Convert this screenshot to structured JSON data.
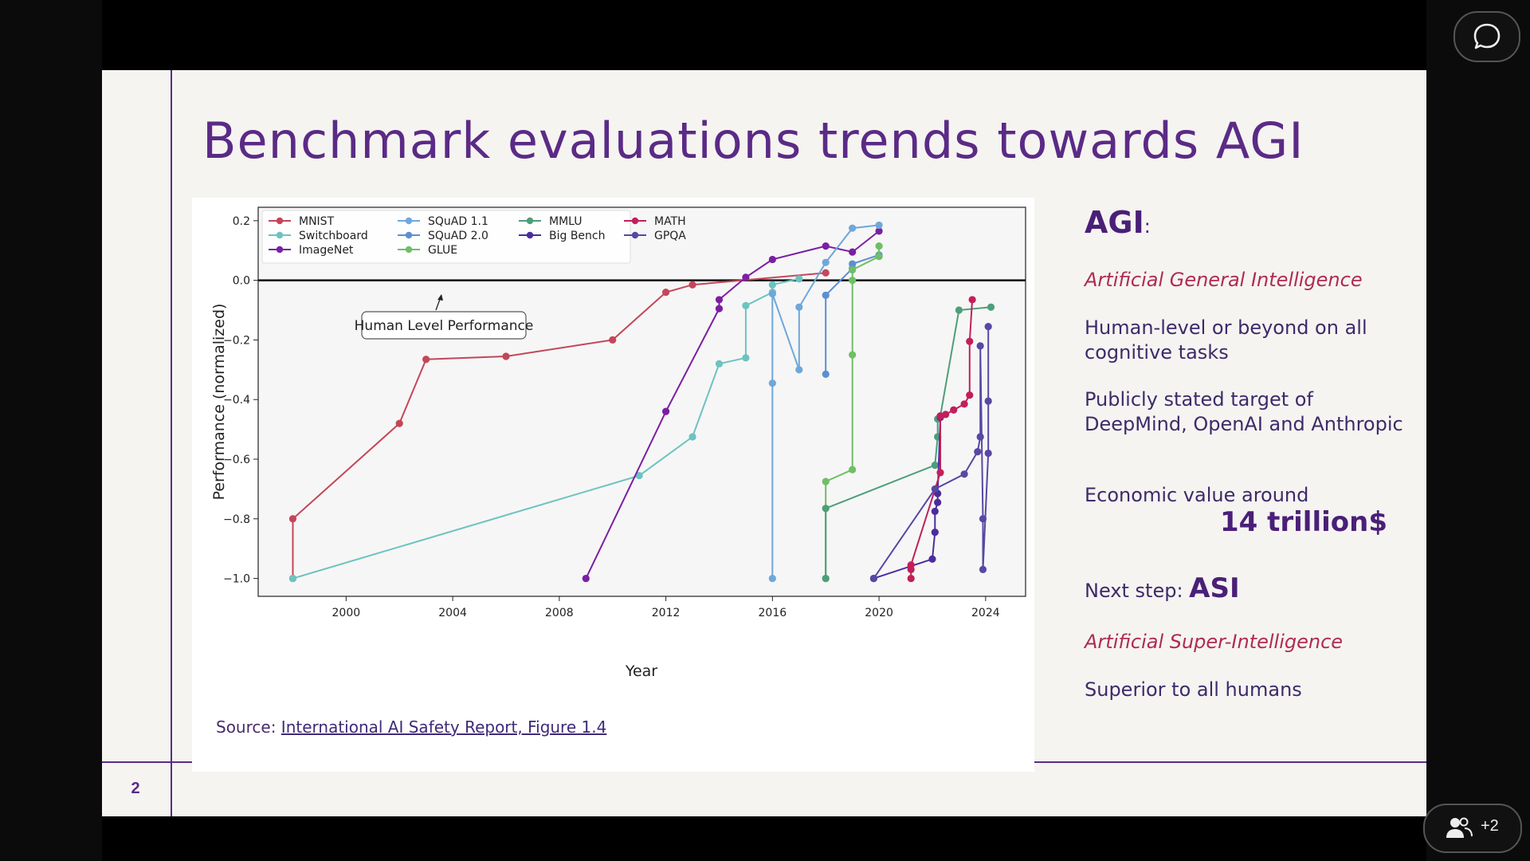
{
  "slide": {
    "title": "Benchmark evaluations trends towards AGI",
    "page_number": "2",
    "source_prefix": "Source: ",
    "source_link": "International AI Safety Report, Figure 1.4"
  },
  "right_panel": {
    "agi_heading": "AGI",
    "agi_colon": ":",
    "agi_full": "Artificial General Intelligence",
    "point1": "Human-level or beyond on all cognitive tasks",
    "point2": "Publicly stated target of DeepMind, OpenAI and Anthropic",
    "point3": "Economic value around",
    "point3_value": "14 trillion$",
    "next_step_label": "Next step: ",
    "next_step_value": "ASI",
    "asi_full": "Artificial Super-Intelligence",
    "point4": "Superior to all humans"
  },
  "overlay": {
    "participants_badge": "+2",
    "chat_icon": "chat-bubble-icon",
    "people_icon": "people-icon"
  },
  "chart_data": {
    "type": "line",
    "xlabel": "Year",
    "ylabel": "Performance (normalized)",
    "xlim": [
      1996.7,
      2025.5
    ],
    "ylim": [
      -1.06,
      0.245
    ],
    "xticks": [
      "2000",
      "2004",
      "2008",
      "2012",
      "2016",
      "2020",
      "2024"
    ],
    "yticks": [
      "0.2",
      "0.0",
      "−0.2",
      "−0.4",
      "−0.6",
      "−0.8",
      "−1.0"
    ],
    "reference_line": {
      "y": 0.0,
      "label": "Human Level Performance"
    },
    "legend_position": "top-left",
    "series": [
      {
        "name": "MNIST",
        "color": "#c44659",
        "x": [
          1998,
          1998,
          2002,
          2003,
          2006,
          2010,
          2012,
          2013,
          2018
        ],
        "y": [
          -1.0,
          -0.8,
          -0.48,
          -0.265,
          -0.255,
          -0.2,
          -0.04,
          -0.015,
          0.025
        ]
      },
      {
        "name": "Switchboard",
        "color": "#6cc3bf",
        "x": [
          1998,
          2011,
          2013,
          2014,
          2015,
          2015,
          2016,
          2016,
          2017
        ],
        "y": [
          -1.0,
          -0.655,
          -0.525,
          -0.28,
          -0.26,
          -0.085,
          -0.04,
          -0.015,
          0.005
        ]
      },
      {
        "name": "ImageNet",
        "color": "#7b1fa2",
        "x": [
          2009,
          2012,
          2014,
          2014,
          2015,
          2016,
          2018,
          2019,
          2020
        ],
        "y": [
          -1.0,
          -0.44,
          -0.095,
          -0.065,
          0.01,
          0.07,
          0.115,
          0.095,
          0.165
        ]
      },
      {
        "name": "SQuAD 1.1",
        "color": "#6fa7db",
        "x": [
          2016,
          2016,
          2016,
          2017,
          2017,
          2018,
          2019,
          2020
        ],
        "y": [
          -1.0,
          -0.345,
          -0.045,
          -0.3,
          -0.09,
          0.06,
          0.175,
          0.185
        ]
      },
      {
        "name": "SQuAD 2.0",
        "color": "#5b8fd1",
        "x": [
          2018,
          2018,
          2019,
          2019,
          2020
        ],
        "y": [
          -0.315,
          -0.05,
          0.04,
          0.055,
          0.085
        ]
      },
      {
        "name": "GLUE",
        "color": "#6fbf65",
        "x": [
          2018,
          2018,
          2019,
          2019,
          2019,
          2019,
          2020,
          2020
        ],
        "y": [
          -1.0,
          -0.675,
          -0.635,
          -0.25,
          0.0,
          0.035,
          0.08,
          0.115
        ]
      },
      {
        "name": "MMLU",
        "color": "#4e9e79",
        "x": [
          2018,
          2018,
          2022.1,
          2022.2,
          2022.2,
          2022.3,
          2023,
          2024.2
        ],
        "y": [
          -1.0,
          -0.765,
          -0.62,
          -0.525,
          -0.465,
          -0.455,
          -0.1,
          -0.09
        ]
      },
      {
        "name": "Big Bench",
        "color": "#4b2c9e",
        "x": [
          2019.8,
          2022,
          2022.1,
          2022.1,
          2022.2,
          2022.2,
          2022.3
        ],
        "y": [
          -1.0,
          -0.935,
          -0.845,
          -0.775,
          -0.745,
          -0.715,
          -0.46
        ]
      },
      {
        "name": "MATH",
        "color": "#c21f5b",
        "x": [
          2021.2,
          2021.2,
          2021.2,
          2022.3,
          2022.3,
          2022.5,
          2022.8,
          2023.2,
          2023.4,
          2023.4,
          2023.5
        ],
        "y": [
          -1.0,
          -0.97,
          -0.955,
          -0.645,
          -0.455,
          -0.45,
          -0.435,
          -0.415,
          -0.385,
          -0.205,
          -0.065
        ]
      },
      {
        "name": "GPQA",
        "color": "#5847a3",
        "x": [
          2019.8,
          2022.1,
          2023.2,
          2023.7,
          2023.8,
          2023.8,
          2023.9,
          2023.9,
          2024.1,
          2024.1,
          2024.1
        ],
        "y": [
          -1.0,
          -0.7,
          -0.65,
          -0.575,
          -0.525,
          -0.22,
          -0.8,
          -0.97,
          -0.58,
          -0.405,
          -0.155
        ]
      }
    ]
  }
}
